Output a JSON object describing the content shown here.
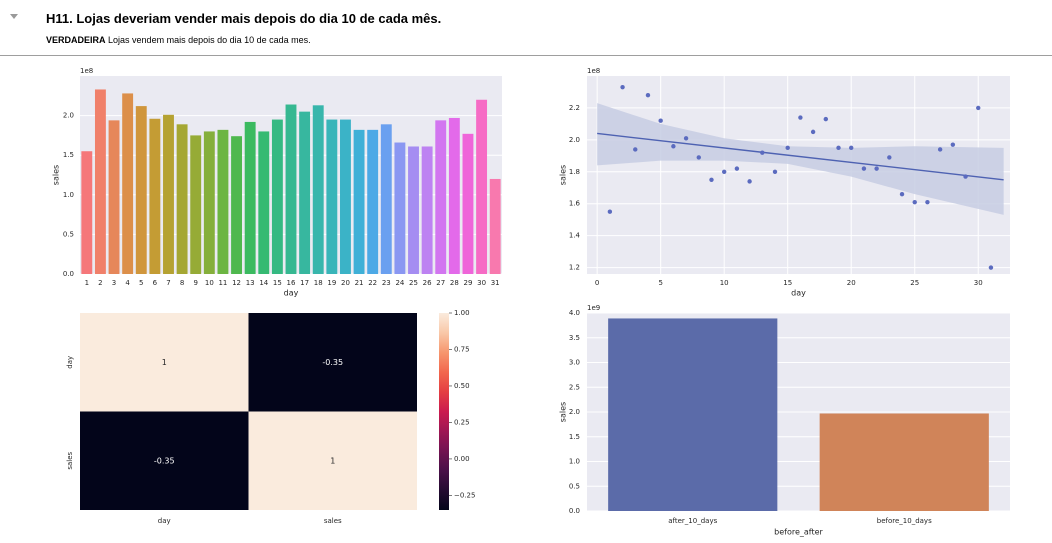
{
  "header": {
    "title": "H11. Lojas deveriam vender mais depois do dia 10 de cada mês.",
    "verdict": "VERDADEIRA",
    "description": "Lojas vendem mais depois do dia 10 de cada mes."
  },
  "chart_data": [
    {
      "type": "bar",
      "xlabel": "day",
      "ylabel": "sales",
      "offset_text": "1e8",
      "categories": [
        "1",
        "2",
        "3",
        "4",
        "5",
        "6",
        "7",
        "8",
        "9",
        "10",
        "11",
        "12",
        "13",
        "14",
        "15",
        "16",
        "17",
        "18",
        "19",
        "20",
        "21",
        "22",
        "23",
        "24",
        "25",
        "26",
        "27",
        "28",
        "29",
        "30",
        "31"
      ],
      "values": [
        1.55,
        2.33,
        1.94,
        2.28,
        2.12,
        1.96,
        2.01,
        1.89,
        1.75,
        1.8,
        1.82,
        1.74,
        1.92,
        1.8,
        1.95,
        2.14,
        2.05,
        2.13,
        1.95,
        1.95,
        1.82,
        1.82,
        1.89,
        1.66,
        1.61,
        1.61,
        1.94,
        1.97,
        1.77,
        2.2,
        1.2
      ],
      "yticks": [
        "0.0",
        "0.5",
        "1.0",
        "1.5",
        "2.0"
      ],
      "ylim": [
        0,
        2.5
      ],
      "grid": true
    },
    {
      "type": "scatter",
      "xlabel": "day",
      "ylabel": "sales",
      "offset_text": "1e8",
      "x": [
        1,
        2,
        3,
        4,
        5,
        6,
        7,
        8,
        9,
        10,
        11,
        12,
        13,
        14,
        15,
        16,
        17,
        18,
        19,
        20,
        21,
        22,
        23,
        24,
        25,
        26,
        27,
        28,
        29,
        30,
        31
      ],
      "y": [
        1.55,
        2.33,
        1.94,
        2.28,
        2.12,
        1.96,
        2.01,
        1.89,
        1.75,
        1.8,
        1.82,
        1.74,
        1.92,
        1.8,
        1.95,
        2.14,
        2.05,
        2.13,
        1.95,
        1.95,
        1.82,
        1.82,
        1.89,
        1.66,
        1.61,
        1.61,
        1.94,
        1.97,
        1.77,
        2.2,
        1.2
      ],
      "regression_line": {
        "x": [
          0,
          32
        ],
        "y": [
          2.04,
          1.75
        ]
      },
      "confidence_band": {
        "x": [
          0,
          5,
          10,
          15,
          20,
          25,
          32
        ],
        "upper": [
          2.23,
          2.1,
          2.01,
          1.96,
          1.95,
          1.96,
          1.95
        ],
        "lower": [
          1.84,
          1.87,
          1.87,
          1.85,
          1.77,
          1.66,
          1.53
        ]
      },
      "xticks": [
        "0",
        "5",
        "10",
        "15",
        "20",
        "25",
        "30"
      ],
      "yticks": [
        "1.2",
        "1.4",
        "1.6",
        "1.8",
        "2.0",
        "2.2"
      ],
      "xlim": [
        -0.8,
        32.5
      ],
      "ylim": [
        1.16,
        2.4
      ],
      "grid": true
    },
    {
      "type": "heatmap",
      "rows": [
        "day",
        "sales"
      ],
      "columns": [
        "day",
        "sales"
      ],
      "values": [
        [
          1,
          -0.35
        ],
        [
          -0.35,
          1
        ]
      ],
      "cell_labels": [
        [
          "1",
          "-0.35"
        ],
        [
          "-0.35",
          "1"
        ]
      ],
      "colorbar_ticks": [
        "1.00",
        "0.75",
        "0.50",
        "0.25",
        "0.00",
        "−0.25"
      ],
      "colorbar_range": [
        -0.35,
        1
      ]
    },
    {
      "type": "bar",
      "xlabel": "before_after",
      "ylabel": "sales",
      "offset_text": "1e9",
      "categories": [
        "after_10_days",
        "before_10_days"
      ],
      "values": [
        3.89,
        1.97
      ],
      "colors": [
        "#5b6ba9",
        "#d08459"
      ],
      "yticks": [
        "0.0",
        "0.5",
        "1.0",
        "1.5",
        "2.0",
        "2.5",
        "3.0",
        "3.5",
        "4.0"
      ],
      "ylim": [
        0,
        4.0
      ],
      "grid": true
    }
  ],
  "colors": {
    "axes_bg": "#eaeaf2",
    "scatter": "#5b6bbf",
    "regression": "#4e62b2",
    "band": "#c7cde3"
  }
}
